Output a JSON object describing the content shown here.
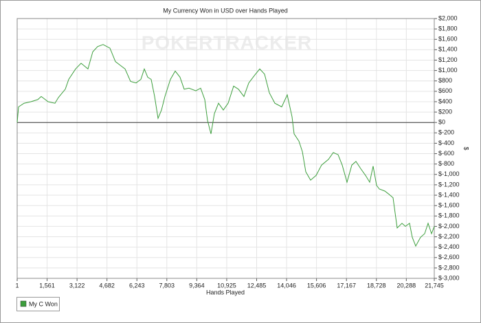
{
  "chart_data": {
    "type": "line",
    "title": "My Currency Won in USD over Hands Played",
    "watermark": "POKERTRACKER",
    "x_label": "Hands Played",
    "y_label": "$",
    "xlim": [
      1,
      21745
    ],
    "ylim": [
      -3000,
      2000
    ],
    "grid": true,
    "legend": "bottom-left",
    "xticks": [
      1,
      {
        "value": 1561,
        "label": "1,561"
      },
      {
        "value": 3122,
        "label": "3,122"
      },
      {
        "value": 4682,
        "label": "4,682"
      },
      {
        "value": 6243,
        "label": "6,243"
      },
      {
        "value": 7803,
        "label": "7,803"
      },
      {
        "value": 9364,
        "label": "9,364"
      },
      {
        "value": 10925,
        "label": "10,925"
      },
      {
        "value": 12485,
        "label": "12,485"
      },
      {
        "value": 14046,
        "label": "14,046"
      },
      {
        "value": 15606,
        "label": "15,606"
      },
      {
        "value": 17167,
        "label": "17,167"
      },
      {
        "value": 18728,
        "label": "18,728"
      },
      {
        "value": 20288,
        "label": "20,288"
      },
      {
        "value": 21745,
        "label": "21,745"
      }
    ],
    "yticks": [
      {
        "value": 2000,
        "label": "$2,000"
      },
      {
        "value": 1800,
        "label": "$1,800"
      },
      {
        "value": 1600,
        "label": "$1,600"
      },
      {
        "value": 1400,
        "label": "$1,400"
      },
      {
        "value": 1200,
        "label": "$1,200"
      },
      {
        "value": 1000,
        "label": "$1,000"
      },
      {
        "value": 800,
        "label": "$800"
      },
      {
        "value": 600,
        "label": "$600"
      },
      {
        "value": 400,
        "label": "$400"
      },
      {
        "value": 200,
        "label": "$200"
      },
      {
        "value": 0,
        "label": "$0"
      },
      {
        "value": -200,
        "label": "$-200"
      },
      {
        "value": -400,
        "label": "$-400"
      },
      {
        "value": -600,
        "label": "$-600"
      },
      {
        "value": -800,
        "label": "$-800"
      },
      {
        "value": -1000,
        "label": "$-1,000"
      },
      {
        "value": -1200,
        "label": "$-1,200"
      },
      {
        "value": -1400,
        "label": "$-1,400"
      },
      {
        "value": -1600,
        "label": "$-1,600"
      },
      {
        "value": -1800,
        "label": "$-1,800"
      },
      {
        "value": -2000,
        "label": "$-2,000"
      },
      {
        "value": -2200,
        "label": "$-2,200"
      },
      {
        "value": -2400,
        "label": "$-2,400"
      },
      {
        "value": -2600,
        "label": "$-2,600"
      },
      {
        "value": -2800,
        "label": "$-2,800"
      },
      {
        "value": -3000,
        "label": "$-3,000"
      }
    ],
    "x": [
      1,
      73,
      359,
      717,
      1076,
      1255,
      1613,
      1971,
      2150,
      2508,
      2687,
      3046,
      3332,
      3690,
      3941,
      4192,
      4479,
      4837,
      5124,
      5374,
      5625,
      5912,
      6198,
      6449,
      6628,
      6807,
      6986,
      7165,
      7344,
      7523,
      7703,
      7989,
      8240,
      8490,
      8705,
      8956,
      9314,
      9565,
      9780,
      9923,
      10102,
      10281,
      10496,
      10747,
      10997,
      11284,
      11535,
      11821,
      12072,
      12359,
      12645,
      12896,
      13147,
      13433,
      13791,
      14078,
      14329,
      14436,
      14687,
      14866,
      15045,
      15296,
      15582,
      15869,
      16227,
      16478,
      16729,
      16944,
      17194,
      17445,
      17660,
      17911,
      18162,
      18377,
      18556,
      18735,
      18878,
      19165,
      19344,
      19595,
      19810,
      20061,
      20240,
      20455,
      20598,
      20777,
      21028,
      21243,
      21422,
      21601,
      21745
    ],
    "series": [
      {
        "name": "My C Won",
        "color": "#3c9e3c",
        "values": [
          0,
          300,
          370,
          400,
          440,
          500,
          400,
          370,
          480,
          640,
          830,
          1030,
          1140,
          1030,
          1360,
          1460,
          1500,
          1430,
          1170,
          1100,
          1030,
          790,
          760,
          830,
          1030,
          870,
          830,
          500,
          80,
          240,
          500,
          830,
          990,
          870,
          640,
          660,
          610,
          660,
          440,
          40,
          -220,
          170,
          370,
          240,
          370,
          700,
          640,
          500,
          760,
          900,
          1030,
          930,
          570,
          370,
          300,
          530,
          110,
          -220,
          -360,
          -560,
          -950,
          -1110,
          -1020,
          -820,
          -710,
          -580,
          -620,
          -820,
          -1150,
          -820,
          -750,
          -890,
          -1020,
          -1150,
          -840,
          -1210,
          -1280,
          -1320,
          -1370,
          -1450,
          -2030,
          -1940,
          -2000,
          -1940,
          -2210,
          -2380,
          -2210,
          -2140,
          -1940,
          -2140,
          -2000
        ]
      }
    ]
  }
}
